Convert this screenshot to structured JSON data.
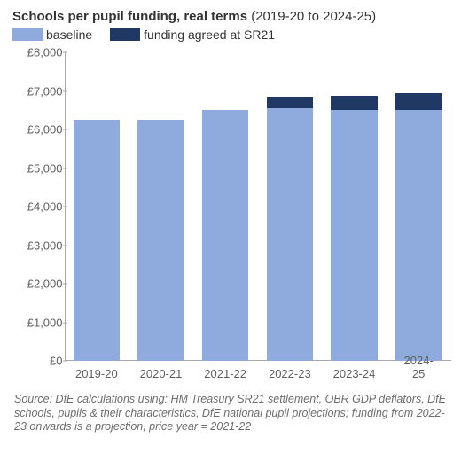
{
  "title": {
    "bold": "Schools per pupil funding, real terms",
    "rest": " (2019-20 to 2024-25)",
    "bold_color": "#333333",
    "rest_color": "#333333",
    "fontsize": 15
  },
  "legend": {
    "items": [
      {
        "label": "baseline",
        "color": "#8faadc"
      },
      {
        "label": "funding agreed at SR21",
        "color": "#203864"
      }
    ],
    "fontsize": 14
  },
  "chart": {
    "type": "stacked-bar",
    "background_color": "#ffffff",
    "y": {
      "min": 0,
      "max": 8000,
      "step": 1000,
      "prefix": "£",
      "label_fontsize": 13,
      "label_color": "#5f5f5f",
      "axis_color": "#a8a8a8",
      "tick_labels": [
        "£0",
        "£1,000",
        "£2,000",
        "£3,000",
        "£4,000",
        "£5,000",
        "£6,000",
        "£7,000",
        "£8,000"
      ]
    },
    "x": {
      "categories": [
        "2019-20",
        "2020-21",
        "2021-22",
        "2022-23",
        "2023-24",
        "2024-25"
      ],
      "label_fontsize": 13,
      "label_color": "#5f5f5f",
      "axis_color": "#a8a8a8"
    },
    "series": [
      {
        "name": "baseline",
        "color": "#8faadc",
        "values": [
          6250,
          6250,
          6500,
          6550,
          6500,
          6500
        ]
      },
      {
        "name": "funding agreed at SR21",
        "color": "#203864",
        "values": [
          0,
          0,
          0,
          300,
          370,
          450
        ]
      }
    ],
    "bar_width_ratio": 0.72
  },
  "source": "Source: DfE calculations using: HM Treasury SR21 settlement, OBR GDP deflators, DfE schools, pupils & their characteristics, DfE national pupil projections; funding from 2022-23 onwards is a projection, price year = 2021-22"
}
